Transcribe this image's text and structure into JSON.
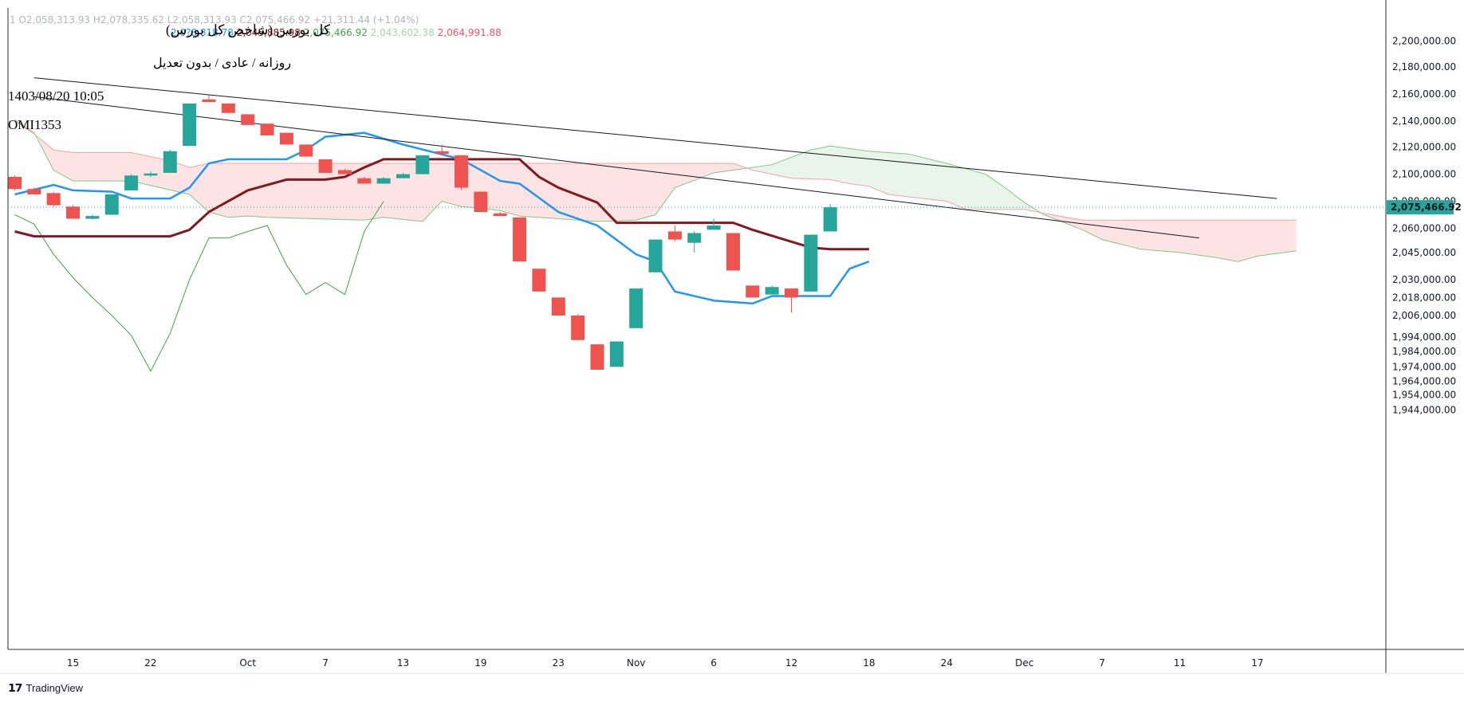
{
  "header": {
    "ohlc_line": "1  O2,058,313.93  H2,078,335.62  L2,058,313.93  C2,075,466.92  +21,311.44 (+1.04%)",
    "indicator_values": [
      {
        "value": "2,0?8,818.78",
        "color": "#2196f3"
      },
      {
        "value": "2,045,885.98",
        "color": "#801922"
      },
      {
        "value": "2,075,466.92",
        "color": "#43a047"
      },
      {
        "value": "2,043,602.38",
        "color": "#a5d6a7"
      },
      {
        "value": "2,064,991.88",
        "color": "#f7525f"
      }
    ]
  },
  "labels": {
    "title": "کل بورس (شاخص کل بورس)",
    "subtitle": "روزانه / عادی / بدون تعدیل",
    "datetime": "1403/08/20 10:05",
    "code": "OMI1353"
  },
  "brand": {
    "name": "TradingView",
    "logo": "tradingview-logo-icon"
  },
  "colors": {
    "up": "#26a69a",
    "down": "#ef5350",
    "tenkan": "#2196f3",
    "kijun": "#801922",
    "lagging": "#43a047",
    "cloud_bear": "#fde3e3",
    "cloud_bull": "#e9f5ea"
  },
  "chart_data": {
    "type": "candlestick",
    "y_axis_ticks": [
      2200000,
      2180000,
      2160000,
      2140000,
      2120000,
      2100000,
      2080000,
      2060000,
      2045000,
      2030000,
      2018000,
      2006000,
      1994000,
      1984000,
      1974000,
      1964000,
      1954000,
      1944000
    ],
    "y_axis_labels": [
      "2,200,000.00",
      "2,180,000.00",
      "2,160,000.00",
      "2,140,000.00",
      "2,120,000.00",
      "2,100,000.00",
      "2,080,000.00",
      "2,060,000.00",
      "2,045,000.00",
      "2,030,000.00",
      "2,018,000.00",
      "2,006,000.00",
      "1,994,000.00",
      "1,984,000.00",
      "1,974,000.00",
      "1,964,000.00",
      "1,954,000.00",
      "1,944,000.00"
    ],
    "last_price_label": "2,075,466.92",
    "last_price": 2075466.92,
    "x_axis_labels": [
      {
        "label": "15",
        "index": 3
      },
      {
        "label": "22",
        "index": 7
      },
      {
        "label": "Oct",
        "index": 12
      },
      {
        "label": "7",
        "index": 16
      },
      {
        "label": "13",
        "index": 20
      },
      {
        "label": "19",
        "index": 24
      },
      {
        "label": "23",
        "index": 28
      },
      {
        "label": "Nov",
        "index": 32
      },
      {
        "label": "6",
        "index": 36
      },
      {
        "label": "12",
        "index": 40
      },
      {
        "label": "18",
        "index": 44
      },
      {
        "label": "24",
        "index": 48
      },
      {
        "label": "Dec",
        "index": 52
      },
      {
        "label": "7",
        "index": 56
      },
      {
        "label": "11",
        "index": 60
      },
      {
        "label": "17",
        "index": 64
      }
    ],
    "candles": [
      {
        "i": 0,
        "o": 2098000,
        "h": 2099000,
        "l": 2088000,
        "c": 2089000
      },
      {
        "i": 1,
        "o": 2089000,
        "h": 2090000,
        "l": 2085000,
        "c": 2085000
      },
      {
        "i": 2,
        "o": 2086000,
        "h": 2087000,
        "l": 2076000,
        "c": 2077000
      },
      {
        "i": 3,
        "o": 2076000,
        "h": 2077000,
        "l": 2067000,
        "c": 2067000
      },
      {
        "i": 4,
        "o": 2067000,
        "h": 2070000,
        "l": 2066500,
        "c": 2069000
      },
      {
        "i": 5,
        "o": 2070000,
        "h": 2085000,
        "l": 2070000,
        "c": 2085000
      },
      {
        "i": 6,
        "o": 2088000,
        "h": 2100000,
        "l": 2088000,
        "c": 2099000
      },
      {
        "i": 7,
        "o": 2099000,
        "h": 2102000,
        "l": 2098000,
        "c": 2100500
      },
      {
        "i": 8,
        "o": 2101000,
        "h": 2118000,
        "l": 2101000,
        "c": 2117000
      },
      {
        "i": 9,
        "o": 2121000,
        "h": 2153000,
        "l": 2121000,
        "c": 2153000
      },
      {
        "i": 10,
        "o": 2156000,
        "h": 2159000,
        "l": 2154000,
        "c": 2154000
      },
      {
        "i": 11,
        "o": 2153000,
        "h": 2153000,
        "l": 2146000,
        "c": 2146000
      },
      {
        "i": 12,
        "o": 2145000,
        "h": 2145000,
        "l": 2137000,
        "c": 2137000
      },
      {
        "i": 13,
        "o": 2138000,
        "h": 2138000,
        "l": 2129000,
        "c": 2129000
      },
      {
        "i": 14,
        "o": 2131000,
        "h": 2131000,
        "l": 2122000,
        "c": 2122000
      },
      {
        "i": 15,
        "o": 2122000,
        "h": 2122000,
        "l": 2113000,
        "c": 2113000
      },
      {
        "i": 16,
        "o": 2111000,
        "h": 2111000,
        "l": 2101000,
        "c": 2101000
      },
      {
        "i": 17,
        "o": 2103000,
        "h": 2104000,
        "l": 2100000,
        "c": 2100000
      },
      {
        "i": 18,
        "o": 2097000,
        "h": 2098000,
        "l": 2093000,
        "c": 2093000
      },
      {
        "i": 19,
        "o": 2093000,
        "h": 2098000,
        "l": 2093000,
        "c": 2097000
      },
      {
        "i": 20,
        "o": 2097000,
        "h": 2101000,
        "l": 2097000,
        "c": 2100000
      },
      {
        "i": 21,
        "o": 2100000,
        "h": 2114000,
        "l": 2100000,
        "c": 2114000
      },
      {
        "i": 22,
        "o": 2117000,
        "h": 2122000,
        "l": 2115000,
        "c": 2115000
      },
      {
        "i": 23,
        "o": 2114000,
        "h": 2114000,
        "l": 2088000,
        "c": 2090000
      },
      {
        "i": 24,
        "o": 2087000,
        "h": 2087000,
        "l": 2072000,
        "c": 2072000
      },
      {
        "i": 25,
        "o": 2071000,
        "h": 2072000,
        "l": 2069000,
        "c": 2069000
      },
      {
        "i": 26,
        "o": 2068000,
        "h": 2068000,
        "l": 2040000,
        "c": 2040000
      },
      {
        "i": 27,
        "o": 2036000,
        "h": 2036000,
        "l": 2022000,
        "c": 2022000
      },
      {
        "i": 28,
        "o": 2018000,
        "h": 2018000,
        "l": 2006000,
        "c": 2006000
      },
      {
        "i": 29,
        "o": 2006000,
        "h": 2007000,
        "l": 1992000,
        "c": 1992000
      },
      {
        "i": 30,
        "o": 1989000,
        "h": 1989000,
        "l": 1972000,
        "c": 1972000
      },
      {
        "i": 31,
        "o": 1974000,
        "h": 1991000,
        "l": 1974000,
        "c": 1991000
      },
      {
        "i": 32,
        "o": 1999000,
        "h": 2024000,
        "l": 1999000,
        "c": 2024000
      },
      {
        "i": 33,
        "o": 2034000,
        "h": 2053000,
        "l": 2034000,
        "c": 2053000
      },
      {
        "i": 34,
        "o": 2058000,
        "h": 2062000,
        "l": 2052000,
        "c": 2053000
      },
      {
        "i": 35,
        "o": 2051000,
        "h": 2058000,
        "l": 2045000,
        "c": 2057000
      },
      {
        "i": 36,
        "o": 2059000,
        "h": 2067000,
        "l": 2059000,
        "c": 2062000
      },
      {
        "i": 37,
        "o": 2057000,
        "h": 2057000,
        "l": 2035000,
        "c": 2035000
      },
      {
        "i": 38,
        "o": 2026000,
        "h": 2026000,
        "l": 2018000,
        "c": 2018000
      },
      {
        "i": 39,
        "o": 2020000,
        "h": 2026000,
        "l": 2020000,
        "c": 2025000
      },
      {
        "i": 40,
        "o": 2024000,
        "h": 2024000,
        "l": 2008000,
        "c": 2018000
      },
      {
        "i": 41,
        "o": 2022000,
        "h": 2056000,
        "l": 2022000,
        "c": 2056000
      },
      {
        "i": 42,
        "o": 2058000,
        "h": 2078000,
        "l": 2058000,
        "c": 2075467
      }
    ],
    "tenkan": [
      [
        0,
        2085000
      ],
      [
        2,
        2092000
      ],
      [
        3,
        2088000
      ],
      [
        5,
        2087000
      ],
      [
        6,
        2082000
      ],
      [
        8,
        2082000
      ],
      [
        9,
        2090000
      ],
      [
        10,
        2108000
      ],
      [
        11,
        2111000
      ],
      [
        14,
        2111000
      ],
      [
        15,
        2118000
      ],
      [
        16,
        2128000
      ],
      [
        18,
        2131000
      ],
      [
        20,
        2122000
      ],
      [
        23,
        2111000
      ],
      [
        25,
        2095000
      ],
      [
        26,
        2093000
      ],
      [
        28,
        2072000
      ],
      [
        30,
        2062000
      ],
      [
        32,
        2044000
      ],
      [
        33,
        2040000
      ],
      [
        34,
        2022000
      ],
      [
        36,
        2016000
      ],
      [
        38,
        2014000
      ],
      [
        39,
        2019000
      ],
      [
        42,
        2019000
      ],
      [
        43,
        2036000
      ],
      [
        44,
        2040000
      ]
    ],
    "kijun": [
      [
        0,
        2058000
      ],
      [
        1,
        2055000
      ],
      [
        8,
        2055000
      ],
      [
        9,
        2059000
      ],
      [
        10,
        2072000
      ],
      [
        12,
        2088000
      ],
      [
        14,
        2096000
      ],
      [
        16,
        2096000
      ],
      [
        17,
        2098000
      ],
      [
        18,
        2105000
      ],
      [
        19,
        2111000
      ],
      [
        26,
        2111000
      ],
      [
        27,
        2098000
      ],
      [
        28,
        2090000
      ],
      [
        30,
        2079000
      ],
      [
        31,
        2064000
      ],
      [
        32,
        2064000
      ],
      [
        37,
        2064000
      ],
      [
        38,
        2059000
      ],
      [
        41,
        2048000
      ],
      [
        42,
        2047000
      ],
      [
        44,
        2047000
      ]
    ],
    "lagging": [
      [
        0,
        2070000
      ],
      [
        1,
        2063000
      ],
      [
        2,
        2044000
      ],
      [
        3,
        2031000
      ],
      [
        4,
        2018000
      ],
      [
        5,
        2006000
      ],
      [
        6,
        1995000
      ],
      [
        7,
        1971000
      ],
      [
        8,
        1996000
      ],
      [
        9,
        2030000
      ],
      [
        10,
        2054000
      ],
      [
        11,
        2054000
      ],
      [
        12,
        2058000
      ],
      [
        13,
        2062000
      ],
      [
        14,
        2038000
      ],
      [
        15,
        2020000
      ],
      [
        16,
        2028000
      ],
      [
        17,
        2020000
      ],
      [
        18,
        2058000
      ],
      [
        19,
        2080000
      ]
    ],
    "senkou_a": [
      [
        0,
        2141000
      ],
      [
        1,
        2131000
      ],
      [
        2,
        2103000
      ],
      [
        3,
        2095000
      ],
      [
        6,
        2095000
      ],
      [
        9,
        2085000
      ],
      [
        10,
        2072000
      ],
      [
        11,
        2068000
      ],
      [
        12,
        2069000
      ],
      [
        13,
        2068000
      ],
      [
        18,
        2066000
      ],
      [
        19,
        2068000
      ],
      [
        21,
        2065000
      ],
      [
        22,
        2080000
      ],
      [
        23,
        2076000
      ],
      [
        24,
        2075000
      ],
      [
        25,
        2073000
      ],
      [
        26,
        2069000
      ],
      [
        27,
        2068000
      ],
      [
        29,
        2066000
      ],
      [
        30,
        2065000
      ],
      [
        32,
        2066000
      ],
      [
        33,
        2070000
      ],
      [
        34,
        2090000
      ],
      [
        36,
        2101000
      ],
      [
        38,
        2105000
      ],
      [
        39,
        2107000
      ],
      [
        41,
        2118000
      ],
      [
        42,
        2121000
      ],
      [
        44,
        2117000
      ],
      [
        46,
        2115000
      ],
      [
        48,
        2108000
      ],
      [
        49,
        2104000
      ],
      [
        50,
        2100000
      ],
      [
        51,
        2090000
      ],
      [
        52,
        2079000
      ],
      [
        53,
        2070000
      ],
      [
        55,
        2059000
      ],
      [
        56,
        2053000
      ],
      [
        57,
        2050000
      ],
      [
        58,
        2047000
      ],
      [
        60,
        2045000
      ],
      [
        62,
        2042000
      ],
      [
        63,
        2040000
      ],
      [
        64,
        2043000
      ],
      [
        66,
        2046000
      ]
    ],
    "senkou_b": [
      [
        0,
        2140000
      ],
      [
        1,
        2130000
      ],
      [
        2,
        2118000
      ],
      [
        3,
        2116000
      ],
      [
        6,
        2116000
      ],
      [
        8,
        2110000
      ],
      [
        9,
        2105000
      ],
      [
        10,
        2108000
      ],
      [
        11,
        2108000
      ],
      [
        22,
        2108000
      ],
      [
        27,
        2108000
      ],
      [
        37,
        2108000
      ],
      [
        38,
        2103000
      ],
      [
        40,
        2097000
      ],
      [
        42,
        2096000
      ],
      [
        43,
        2093000
      ],
      [
        44,
        2091000
      ],
      [
        45,
        2085000
      ],
      [
        48,
        2080000
      ],
      [
        49,
        2074000
      ],
      [
        52,
        2074000
      ],
      [
        53,
        2071000
      ],
      [
        55,
        2066000
      ],
      [
        66,
        2066000
      ]
    ],
    "trendlines": [
      {
        "x1": 1,
        "y1": 2172000,
        "x2": 65,
        "y2": 2082000
      },
      {
        "x1": 1,
        "y1": 2158000,
        "x2": 61,
        "y2": 2054000
      }
    ],
    "grid": false
  }
}
